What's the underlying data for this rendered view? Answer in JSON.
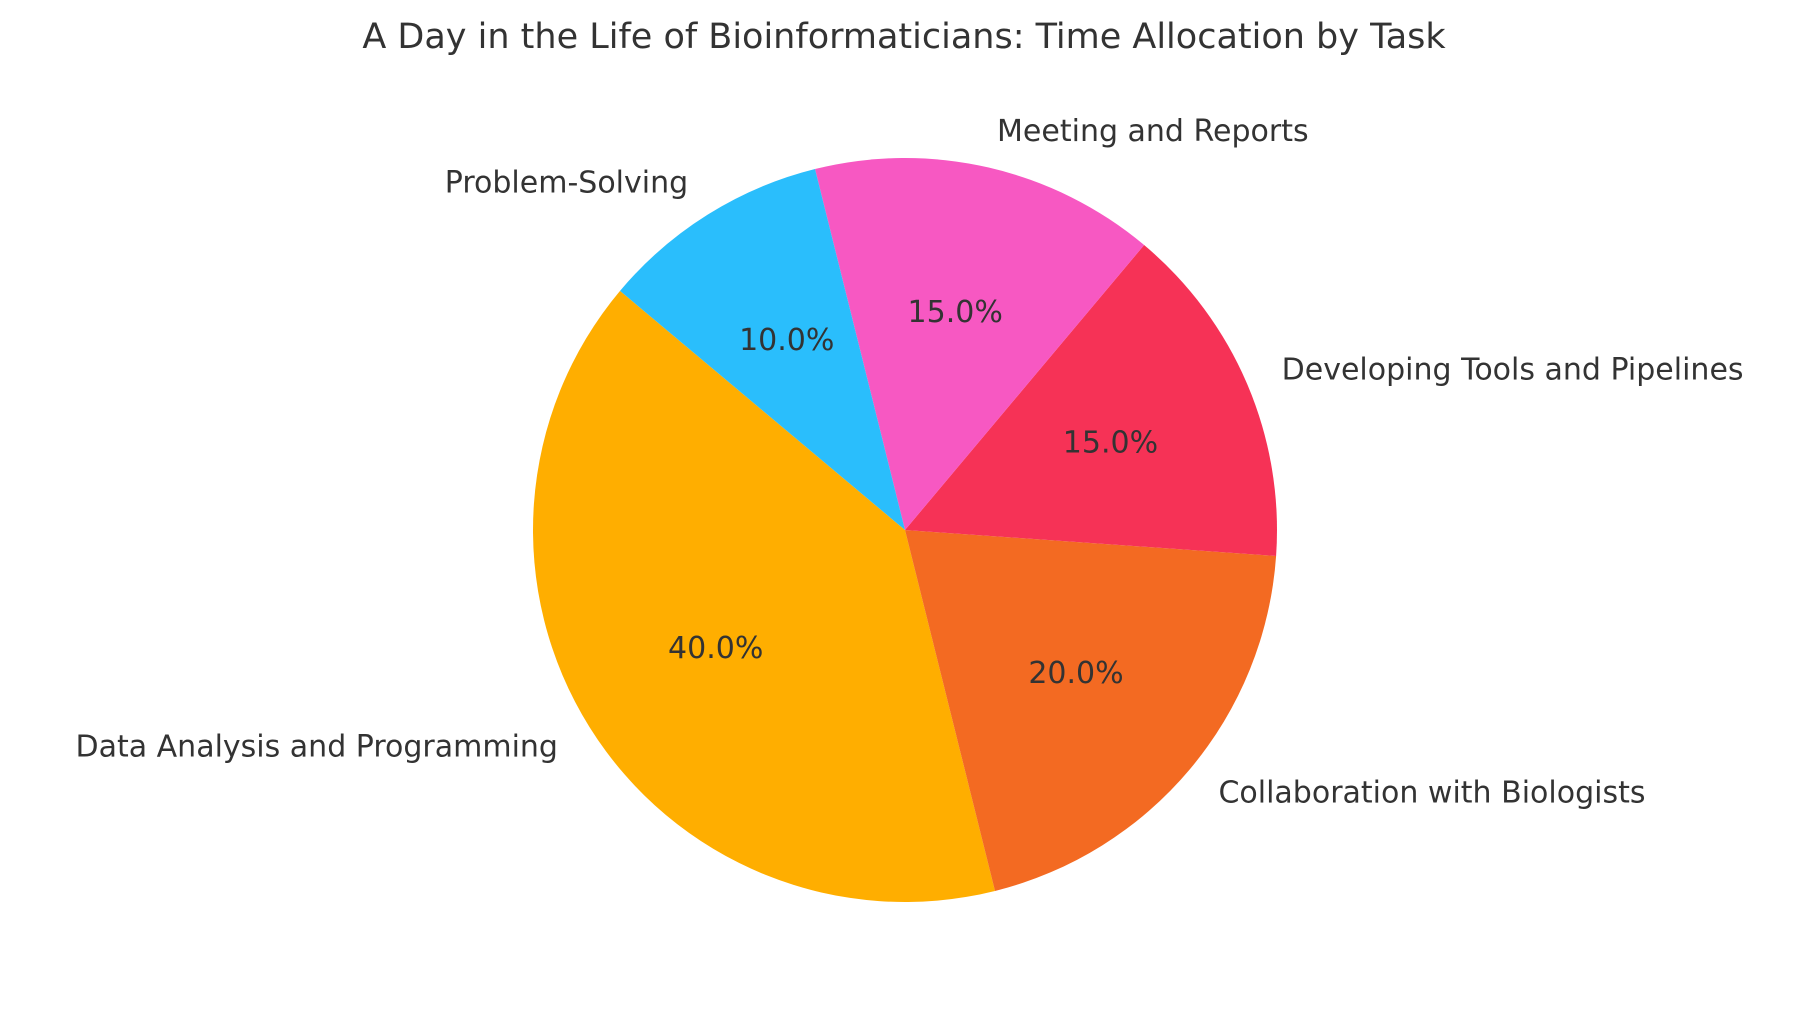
{
  "chart_data": {
    "type": "pie",
    "title": "A Day in the Life of Bioinformaticians: Time Allocation by Task",
    "start_angle_deg": 140,
    "direction": "counterclockwise",
    "slices": [
      {
        "label": "Data Analysis and Programming",
        "value": 40.0,
        "pct_label": "40.0%",
        "color": "#FFAE00"
      },
      {
        "label": "Collaboration with Biologists",
        "value": 20.0,
        "pct_label": "20.0%",
        "color": "#F36A22"
      },
      {
        "label": "Developing Tools and Pipelines",
        "value": 15.0,
        "pct_label": "15.0%",
        "color": "#F63256"
      },
      {
        "label": "Meeting and Reports",
        "value": 15.0,
        "pct_label": "15.0%",
        "color": "#F758C2"
      },
      {
        "label": "Problem-Solving",
        "value": 10.0,
        "pct_label": "10.0%",
        "color": "#2ABEFC"
      }
    ]
  }
}
